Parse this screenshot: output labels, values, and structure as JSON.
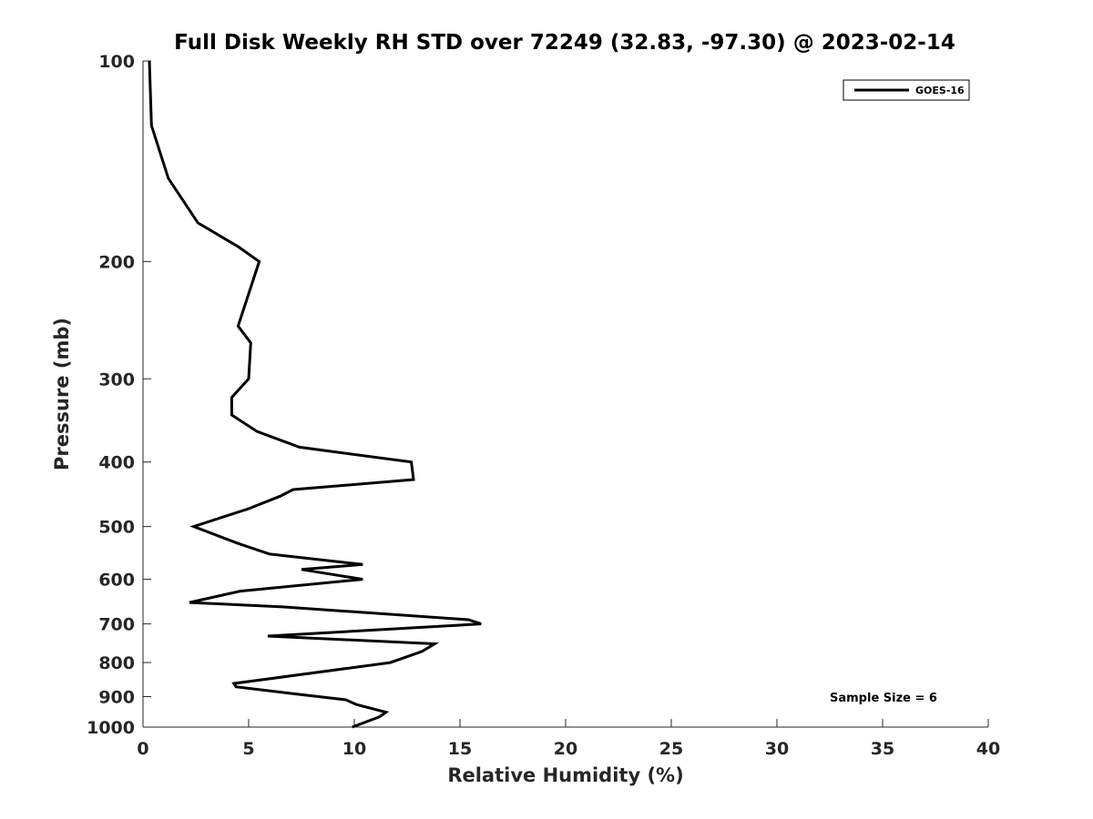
{
  "chart_data": {
    "type": "line",
    "title": "Full Disk Weekly RH STD over 72249 (32.83, -97.30) @ 2023-02-14",
    "xlabel": "Relative Humidity (%)",
    "ylabel": "Pressure (mb)",
    "xlim": [
      0,
      40
    ],
    "ylim": [
      100,
      1000
    ],
    "y_scale": "log",
    "y_reversed": true,
    "x_ticks": [
      "0",
      "5",
      "10",
      "15",
      "20",
      "25",
      "30",
      "35",
      "40"
    ],
    "y_ticks": [
      "100",
      "200",
      "300",
      "400",
      "500",
      "600",
      "700",
      "800",
      "900",
      "1000"
    ],
    "grid": false,
    "legend_position": "top-right",
    "annotation": "Sample Size = 6",
    "series": [
      {
        "name": "GOES-16",
        "color": "#000000",
        "points": [
          [
            0.3,
            100
          ],
          [
            0.4,
            125
          ],
          [
            1.2,
            150
          ],
          [
            2.6,
            175
          ],
          [
            4.5,
            190
          ],
          [
            5.5,
            200
          ],
          [
            4.5,
            250
          ],
          [
            5.1,
            265
          ],
          [
            5.0,
            300
          ],
          [
            4.2,
            320
          ],
          [
            4.2,
            340
          ],
          [
            5.4,
            360
          ],
          [
            7.4,
            380
          ],
          [
            12.7,
            400
          ],
          [
            12.8,
            425
          ],
          [
            7.1,
            440
          ],
          [
            6.5,
            450
          ],
          [
            5.0,
            470
          ],
          [
            2.4,
            500
          ],
          [
            4.5,
            530
          ],
          [
            6.0,
            550
          ],
          [
            10.4,
            570
          ],
          [
            7.5,
            580
          ],
          [
            10.4,
            600
          ],
          [
            4.6,
            625
          ],
          [
            2.2,
            650
          ],
          [
            6.6,
            660
          ],
          [
            15.4,
            690
          ],
          [
            16.0,
            700
          ],
          [
            5.9,
            730
          ],
          [
            13.8,
            750
          ],
          [
            13.2,
            770
          ],
          [
            12.2,
            790
          ],
          [
            11.7,
            800
          ],
          [
            4.3,
            860
          ],
          [
            4.4,
            870
          ],
          [
            7.0,
            890
          ],
          [
            9.6,
            910
          ],
          [
            10.1,
            925
          ],
          [
            11.5,
            950
          ],
          [
            11.2,
            965
          ],
          [
            9.9,
            1000
          ]
        ]
      }
    ]
  }
}
